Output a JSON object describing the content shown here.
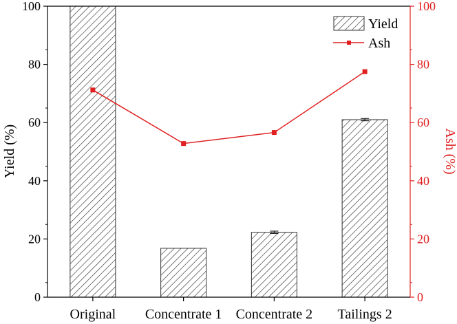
{
  "chart_data": {
    "type": "bar+line",
    "categories": [
      "Original",
      "Concentrate 1",
      "Concentrate 2",
      "Tailings 2"
    ],
    "series": [
      {
        "name": "Yield",
        "kind": "bar",
        "axis": "left",
        "pattern": "diagonal-hatch",
        "values": [
          100,
          16.8,
          22.3,
          61.0
        ],
        "errors": [
          0,
          0,
          0.4,
          0.4
        ],
        "color": "#333333"
      },
      {
        "name": "Ash",
        "kind": "line",
        "axis": "right",
        "marker": "square",
        "values": [
          71.2,
          52.8,
          56.6,
          77.5
        ],
        "color": "#e02020"
      }
    ],
    "ylabel": "Yield (%)",
    "ylabel_right": "Ash (%)",
    "ylim": [
      0,
      100
    ],
    "ylim_right": [
      0,
      100
    ],
    "yticks": [
      0,
      20,
      40,
      60,
      80,
      100
    ],
    "yticks_right": [
      0,
      20,
      40,
      60,
      80,
      100
    ],
    "grid": false,
    "legend_position": "top-right"
  }
}
